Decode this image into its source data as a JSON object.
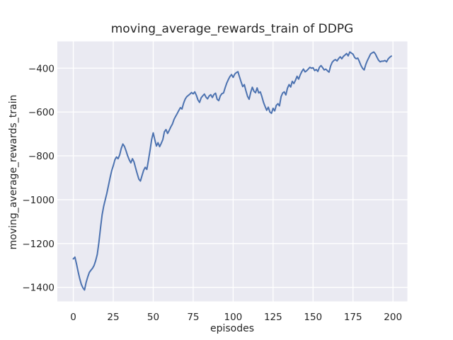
{
  "figure": {
    "background": "#ffffff"
  },
  "chart_data": {
    "type": "line",
    "title": "moving_average_rewards_train of DDPG",
    "xlabel": "episodes",
    "ylabel": "moving_average_rewards_train",
    "xlim": [
      -10,
      209
    ],
    "ylim": [
      -1464,
      -278
    ],
    "xticks": [
      0,
      25,
      50,
      75,
      100,
      125,
      150,
      175,
      200
    ],
    "yticks": [
      -1400,
      -1200,
      -1000,
      -800,
      -600,
      -400
    ],
    "grid": true,
    "legend": false,
    "style": {
      "plot_background": "#eaeaf2",
      "grid_color": "#ffffff",
      "line_color": "#4c72b0",
      "text_color": "#262626",
      "line_width": 2
    },
    "series": [
      {
        "name": "moving_average_rewards_train",
        "x_start": 0,
        "x_step": 1,
        "values": [
          -1270,
          -1262,
          -1293,
          -1328,
          -1360,
          -1386,
          -1402,
          -1412,
          -1378,
          -1353,
          -1332,
          -1322,
          -1313,
          -1300,
          -1278,
          -1249,
          -1195,
          -1130,
          -1070,
          -1030,
          -1000,
          -970,
          -935,
          -900,
          -868,
          -845,
          -818,
          -805,
          -813,
          -796,
          -766,
          -746,
          -757,
          -777,
          -800,
          -818,
          -832,
          -813,
          -828,
          -856,
          -882,
          -906,
          -915,
          -890,
          -866,
          -852,
          -862,
          -820,
          -775,
          -726,
          -695,
          -727,
          -755,
          -740,
          -758,
          -743,
          -726,
          -690,
          -680,
          -698,
          -684,
          -668,
          -655,
          -634,
          -620,
          -607,
          -593,
          -580,
          -586,
          -560,
          -541,
          -530,
          -524,
          -518,
          -511,
          -517,
          -508,
          -524,
          -545,
          -556,
          -535,
          -526,
          -518,
          -532,
          -540,
          -527,
          -521,
          -534,
          -520,
          -514,
          -542,
          -548,
          -526,
          -516,
          -513,
          -489,
          -468,
          -452,
          -438,
          -429,
          -442,
          -427,
          -420,
          -416,
          -440,
          -463,
          -484,
          -475,
          -503,
          -528,
          -542,
          -510,
          -487,
          -505,
          -512,
          -490,
          -513,
          -508,
          -530,
          -556,
          -575,
          -592,
          -578,
          -600,
          -606,
          -583,
          -595,
          -570,
          -562,
          -572,
          -530,
          -513,
          -508,
          -522,
          -491,
          -475,
          -486,
          -460,
          -470,
          -455,
          -437,
          -450,
          -430,
          -415,
          -404,
          -417,
          -412,
          -404,
          -396,
          -400,
          -398,
          -411,
          -406,
          -415,
          -396,
          -388,
          -398,
          -408,
          -404,
          -412,
          -418,
          -390,
          -373,
          -365,
          -361,
          -367,
          -356,
          -348,
          -357,
          -346,
          -340,
          -333,
          -344,
          -326,
          -331,
          -336,
          -351,
          -357,
          -354,
          -370,
          -388,
          -401,
          -408,
          -383,
          -365,
          -350,
          -335,
          -330,
          -326,
          -335,
          -350,
          -364,
          -371,
          -368,
          -368,
          -365,
          -371,
          -358,
          -350,
          -345
        ]
      }
    ]
  }
}
